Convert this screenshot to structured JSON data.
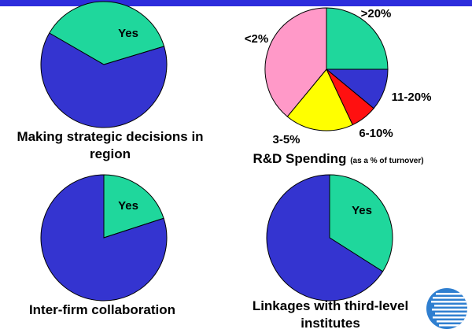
{
  "colors": {
    "yes": "#1fd79c",
    "no": "#3434d0",
    "rd_over20": "#1fd79c",
    "rd_11_20": "#3434d0",
    "rd_6_10": "#ff1010",
    "rd_3_5": "#ffff00",
    "rd_under2": "#ff99c8",
    "band": "#2d2ddc"
  },
  "captions": {
    "strategic": "Making strategic decisions in region",
    "rd": "R&D Spending",
    "rd_note": "(as a % of turnover)",
    "interfirm": "Inter-firm collaboration",
    "linkages": "Linkages with third-level institutes"
  },
  "logo_icon": "globe-stripes-logo-icon",
  "chart_data": [
    {
      "type": "pie",
      "title": "Making strategic decisions in region",
      "slices": [
        {
          "label": "Yes",
          "value": 37,
          "color": "#1fd79c"
        },
        {
          "label": "",
          "value": 63,
          "color": "#3434d0"
        }
      ]
    },
    {
      "type": "pie",
      "title": "R&D Spending (as a % of turnover)",
      "slices": [
        {
          "label": ">20%",
          "value": 25,
          "color": "#1fd79c"
        },
        {
          "label": "11-20%",
          "value": 11,
          "color": "#3434d0"
        },
        {
          "label": "6-10%",
          "value": 7,
          "color": "#ff1010"
        },
        {
          "label": "3-5%",
          "value": 18,
          "color": "#ffff00"
        },
        {
          "label": "<2%",
          "value": 39,
          "color": "#ff99c8"
        }
      ]
    },
    {
      "type": "pie",
      "title": "Inter-firm collaboration",
      "slices": [
        {
          "label": "Yes",
          "value": 20,
          "color": "#1fd79c"
        },
        {
          "label": "",
          "value": 80,
          "color": "#3434d0"
        }
      ]
    },
    {
      "type": "pie",
      "title": "Linkages with third-level institutes",
      "slices": [
        {
          "label": "Yes",
          "value": 34,
          "color": "#1fd79c"
        },
        {
          "label": "",
          "value": 66,
          "color": "#3434d0"
        }
      ]
    }
  ]
}
